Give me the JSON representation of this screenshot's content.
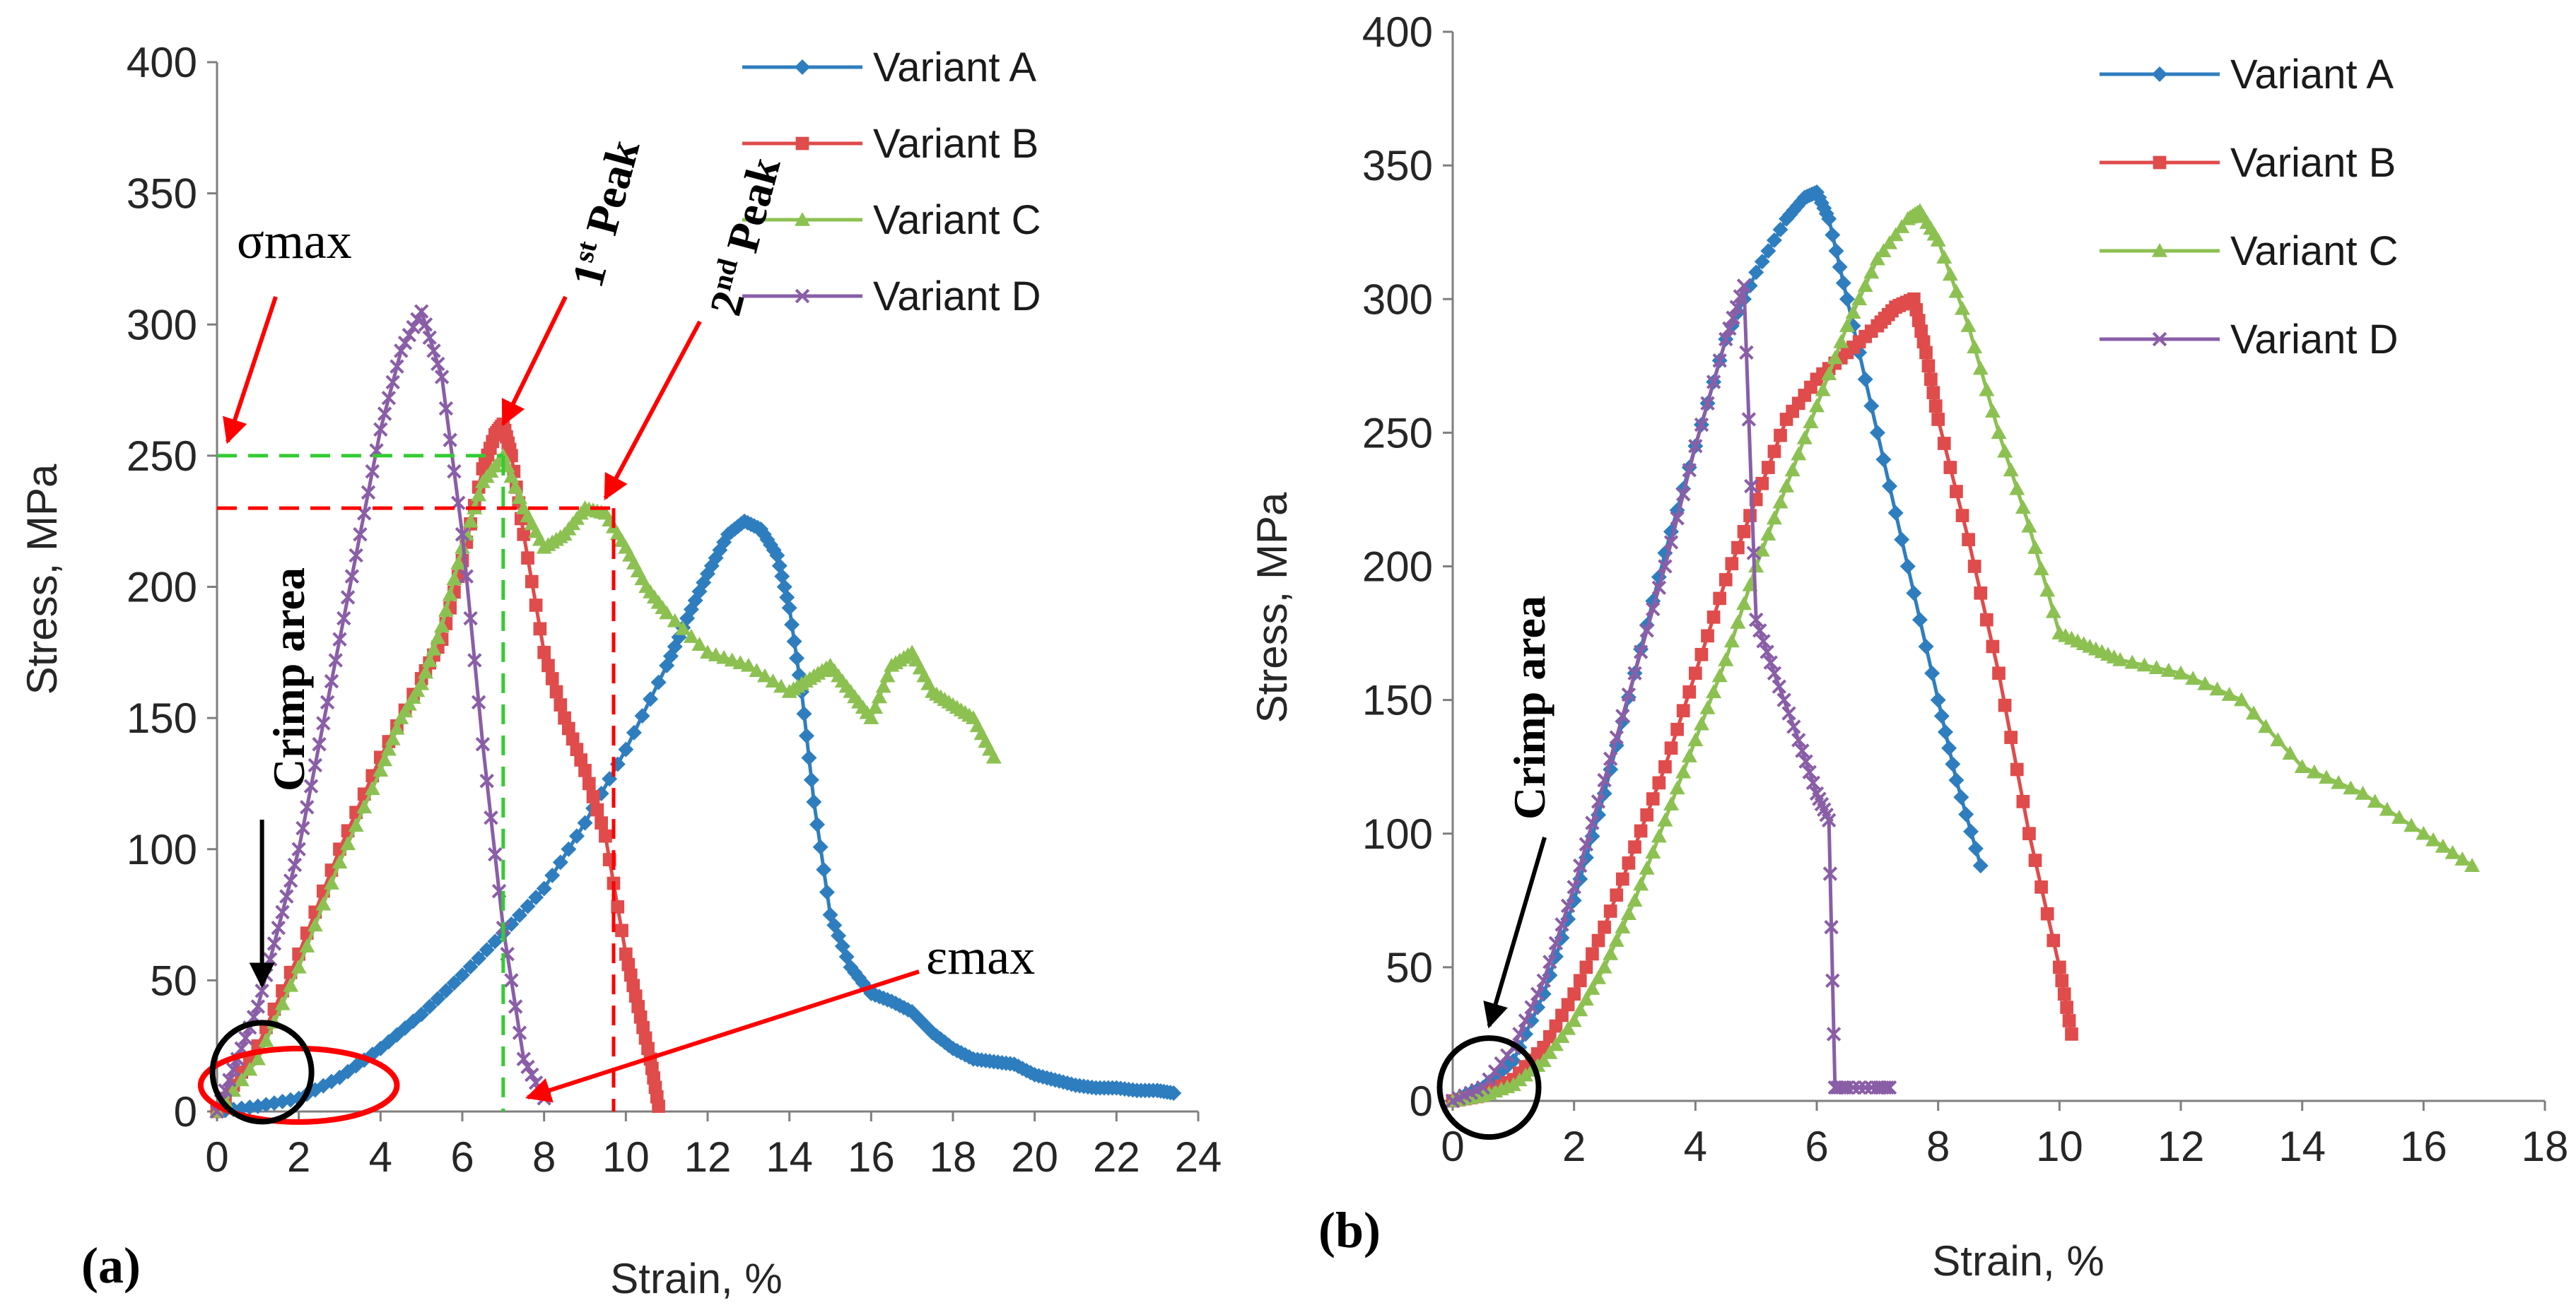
{
  "colors": {
    "Variant A": "#2e7ebf",
    "Variant B": "#e04b4b",
    "Variant C": "#8cc152",
    "Variant D": "#8a5ea7",
    "axis": "#7f7f7f",
    "annotation_red": "#ff0000",
    "annotation_green": "#33cc33"
  },
  "chart_data": [
    {
      "type": "line",
      "panel_label": "(a)",
      "xlabel": "Strain, %",
      "ylabel": "Stress, MPa",
      "xlim": [
        0,
        24
      ],
      "ylim": [
        0,
        400
      ],
      "x_ticks": [
        "0",
        "2",
        "4",
        "6",
        "8",
        "10",
        "12",
        "14",
        "16",
        "18",
        "20",
        "22",
        "24"
      ],
      "y_ticks": [
        "0",
        "50",
        "100",
        "150",
        "200",
        "250",
        "300",
        "350",
        "400"
      ],
      "grid": false,
      "legend": "top-right",
      "series": [
        {
          "name": "Variant A",
          "marker": "diamond",
          "x": [
            0,
            1,
            2,
            3,
            4,
            5,
            6,
            7,
            8,
            9,
            10,
            11,
            11.5,
            12,
            12.5,
            12.9,
            13.3,
            13.7,
            14,
            14.3,
            14.6,
            15,
            15.5,
            16,
            16.5,
            17,
            17.5,
            18,
            18.5,
            19,
            19.5,
            20,
            20.5,
            21,
            21.5,
            22,
            22.5,
            23,
            23.4
          ],
          "y": [
            0,
            2,
            5,
            13,
            24,
            37,
            52,
            68,
            85,
            110,
            138,
            170,
            188,
            205,
            220,
            225,
            222,
            212,
            192,
            160,
            118,
            75,
            55,
            45,
            42,
            38,
            30,
            24,
            20,
            19,
            18,
            14,
            12,
            10,
            9,
            9,
            8,
            8,
            7
          ]
        },
        {
          "name": "Variant B",
          "marker": "square",
          "x": [
            0,
            1,
            2,
            3,
            4,
            5,
            5.5,
            6,
            6.5,
            6.8,
            7,
            7.2,
            7.5,
            8,
            8.5,
            9,
            9.5,
            10,
            10.3,
            10.6,
            10.8
          ],
          "y": [
            0,
            25,
            60,
            100,
            135,
            165,
            180,
            210,
            245,
            258,
            262,
            250,
            220,
            175,
            150,
            130,
            105,
            60,
            40,
            20,
            2
          ]
        },
        {
          "name": "Variant C",
          "marker": "triangle",
          "x": [
            0,
            1,
            2,
            3,
            4,
            4.5,
            5,
            5.5,
            6,
            6.5,
            7,
            7.5,
            8,
            8.5,
            9,
            9.5,
            10,
            10.5,
            11,
            12,
            13,
            14,
            14.5,
            15,
            15.5,
            16,
            16.5,
            17,
            17.5,
            18,
            18.5,
            19
          ],
          "y": [
            0,
            20,
            55,
            95,
            130,
            150,
            163,
            185,
            215,
            240,
            250,
            230,
            215,
            220,
            230,
            228,
            215,
            200,
            190,
            175,
            170,
            160,
            165,
            170,
            160,
            150,
            170,
            175,
            160,
            155,
            150,
            135
          ]
        },
        {
          "name": "Variant D",
          "marker": "x",
          "x": [
            0,
            0.5,
            1,
            1.5,
            2,
            2.5,
            3,
            3.5,
            4,
            4.5,
            5,
            5.5,
            6,
            6.5,
            7,
            7.5,
            8
          ],
          "y": [
            0,
            20,
            40,
            70,
            100,
            140,
            180,
            220,
            260,
            290,
            305,
            280,
            220,
            140,
            70,
            20,
            5
          ]
        }
      ],
      "annotations": {
        "sigma_max": "σmax",
        "epsilon_max": "εmax",
        "first_peak_base": "1",
        "first_peak_sup": "st",
        "first_peak_word": " Peak",
        "second_peak_base": "2",
        "second_peak_sup": "nd",
        "second_peak_word": " Peak",
        "crimp_area": "Crimp area"
      }
    },
    {
      "type": "line",
      "panel_label": "(b)",
      "xlabel": "Strain, %",
      "ylabel": "Stress, MPa",
      "xlim": [
        0,
        18
      ],
      "ylim": [
        0,
        400
      ],
      "x_ticks": [
        "0",
        "2",
        "4",
        "6",
        "8",
        "10",
        "12",
        "14",
        "16",
        "18"
      ],
      "y_ticks": [
        "0",
        "50",
        "100",
        "150",
        "200",
        "250",
        "300",
        "350",
        "400"
      ],
      "grid": false,
      "legend": "top-right",
      "series": [
        {
          "name": "Variant A",
          "marker": "diamond",
          "x": [
            0,
            0.5,
            1,
            1.5,
            2,
            2.5,
            3,
            3.5,
            4,
            4.5,
            5,
            5.5,
            5.8,
            6,
            6.2,
            6.5,
            7,
            7.5,
            8,
            8.3,
            8.7
          ],
          "y": [
            0,
            5,
            15,
            40,
            75,
            115,
            160,
            205,
            245,
            285,
            310,
            330,
            338,
            340,
            330,
            300,
            250,
            200,
            150,
            120,
            88
          ]
        },
        {
          "name": "Variant B",
          "marker": "square",
          "x": [
            0,
            0.5,
            1,
            1.5,
            2,
            2.5,
            3,
            3.5,
            4,
            4.5,
            5,
            5.5,
            6,
            6.5,
            7,
            7.3,
            7.6,
            7.8,
            8,
            8.5,
            9,
            9.5,
            10,
            10.2
          ],
          "y": [
            0,
            2,
            8,
            20,
            40,
            65,
            95,
            125,
            160,
            195,
            225,
            255,
            270,
            280,
            290,
            297,
            300,
            280,
            255,
            210,
            160,
            100,
            50,
            25
          ]
        },
        {
          "name": "Variant C",
          "marker": "triangle",
          "x": [
            0,
            0.5,
            1,
            1.5,
            2,
            2.5,
            3,
            3.5,
            4,
            4.5,
            5,
            5.5,
            6,
            6.5,
            7,
            7.5,
            7.7,
            8,
            8.5,
            9,
            9.5,
            10,
            10.5,
            11,
            12,
            13,
            14,
            15,
            16,
            16.8
          ],
          "y": [
            0,
            2,
            6,
            15,
            30,
            50,
            75,
            105,
            135,
            165,
            200,
            230,
            260,
            290,
            315,
            330,
            333,
            322,
            290,
            250,
            215,
            175,
            170,
            165,
            160,
            150,
            125,
            115,
            100,
            88
          ]
        },
        {
          "name": "Variant D",
          "marker": "x",
          "x": [
            0,
            0.5,
            1,
            1.5,
            2,
            2.5,
            3,
            3.5,
            4,
            4.5,
            4.8,
            5,
            5.3,
            5.7,
            6,
            6.2,
            6.3,
            6.5,
            7,
            7.2
          ],
          "y": [
            0,
            5,
            20,
            45,
            80,
            120,
            160,
            200,
            245,
            285,
            305,
            180,
            160,
            135,
            115,
            105,
            5,
            5,
            5,
            5
          ]
        }
      ],
      "annotations": {
        "crimp_area": "Crimp area"
      }
    }
  ]
}
